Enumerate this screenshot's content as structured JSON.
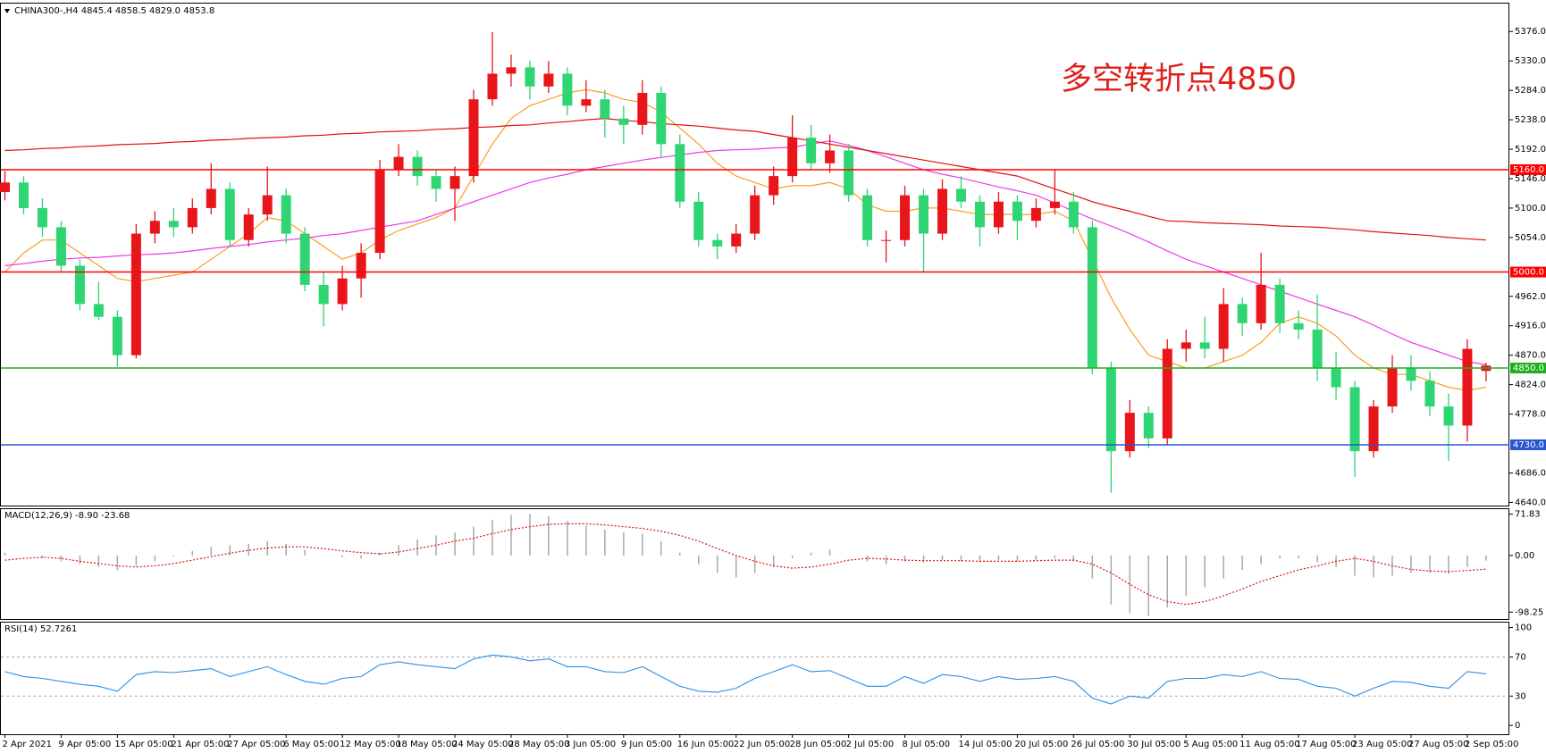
{
  "chart_data": [
    {
      "type": "candlestick",
      "title": "CHINA300-,H4  4845.4 4858.5 4829.0 4853.8",
      "annotation": "多空转折点4850",
      "up_color": "#e8151b",
      "down_color": "#2fd573",
      "categories": [
        "2 Apr 2021",
        null,
        null,
        "9 Apr 05:00",
        null,
        null,
        "15 Apr 05:00",
        null,
        null,
        "21 Apr 05:00",
        null,
        null,
        "27 Apr 05:00",
        null,
        null,
        "6 May 05:00",
        null,
        null,
        "12 May 05:00",
        null,
        null,
        "18 May 05:00",
        null,
        null,
        "24 May 05:00",
        null,
        null,
        "28 May 05:00",
        null,
        null,
        "3 Jun 05:00",
        null,
        null,
        "9 Jun 05:00",
        null,
        null,
        "16 Jun 05:00",
        null,
        null,
        "22 Jun 05:00",
        null,
        null,
        "28 Jun 05:00",
        null,
        null,
        "2 Jul 05:00",
        null,
        null,
        "8 Jul 05:00",
        null,
        null,
        "14 Jul 05:00",
        null,
        null,
        "20 Jul 05:00",
        null,
        null,
        "26 Jul 05:00",
        null,
        null,
        "30 Jul 05:00",
        null,
        null,
        "5 Aug 05:00",
        null,
        null,
        "11 Aug 05:00",
        null,
        null,
        "17 Aug 05:00",
        null,
        null,
        "23 Aug 05:00",
        null,
        null,
        "27 Aug 05:00",
        null,
        null,
        "2 Sep 05:00",
        null
      ],
      "ohlc": [
        [
          5125,
          5158,
          5112,
          5140
        ],
        [
          5140,
          5150,
          5090,
          5100
        ],
        [
          5100,
          5115,
          5055,
          5070
        ],
        [
          5070,
          5080,
          5000,
          5010
        ],
        [
          5010,
          5020,
          4940,
          4950
        ],
        [
          4950,
          4985,
          4925,
          4930
        ],
        [
          4930,
          4940,
          4852,
          4870
        ],
        [
          4870,
          5075,
          4865,
          5060
        ],
        [
          5060,
          5095,
          5045,
          5080
        ],
        [
          5080,
          5100,
          5055,
          5070
        ],
        [
          5070,
          5115,
          5060,
          5100
        ],
        [
          5100,
          5170,
          5090,
          5130
        ],
        [
          5130,
          5140,
          5040,
          5050
        ],
        [
          5050,
          5100,
          5040,
          5090
        ],
        [
          5090,
          5165,
          5080,
          5120
        ],
        [
          5120,
          5130,
          5045,
          5060
        ],
        [
          5060,
          5070,
          4970,
          4980
        ],
        [
          4980,
          5000,
          4915,
          4950
        ],
        [
          4950,
          5010,
          4940,
          4990
        ],
        [
          4990,
          5045,
          4960,
          5030
        ],
        [
          5030,
          5175,
          5020,
          5160
        ],
        [
          5160,
          5200,
          5150,
          5180
        ],
        [
          5180,
          5190,
          5135,
          5150
        ],
        [
          5150,
          5160,
          5110,
          5130
        ],
        [
          5130,
          5165,
          5080,
          5150
        ],
        [
          5150,
          5285,
          5140,
          5270
        ],
        [
          5270,
          5375,
          5260,
          5310
        ],
        [
          5310,
          5340,
          5290,
          5320
        ],
        [
          5320,
          5330,
          5270,
          5290
        ],
        [
          5290,
          5330,
          5280,
          5310
        ],
        [
          5310,
          5320,
          5245,
          5260
        ],
        [
          5260,
          5300,
          5250,
          5270
        ],
        [
          5270,
          5285,
          5210,
          5240
        ],
        [
          5240,
          5260,
          5200,
          5230
        ],
        [
          5230,
          5300,
          5215,
          5280
        ],
        [
          5280,
          5290,
          5180,
          5200
        ],
        [
          5200,
          5215,
          5100,
          5110
        ],
        [
          5110,
          5125,
          5040,
          5050
        ],
        [
          5050,
          5060,
          5020,
          5040
        ],
        [
          5040,
          5075,
          5030,
          5060
        ],
        [
          5060,
          5135,
          5050,
          5120
        ],
        [
          5120,
          5165,
          5105,
          5150
        ],
        [
          5150,
          5245,
          5140,
          5210
        ],
        [
          5210,
          5230,
          5160,
          5170
        ],
        [
          5170,
          5215,
          5155,
          5190
        ],
        [
          5190,
          5200,
          5110,
          5120
        ],
        [
          5120,
          5130,
          5040,
          5050
        ],
        [
          5050,
          5065,
          5015,
          5050
        ],
        [
          5050,
          5135,
          5040,
          5120
        ],
        [
          5120,
          5130,
          5000,
          5060
        ],
        [
          5060,
          5145,
          5050,
          5130
        ],
        [
          5130,
          5150,
          5100,
          5110
        ],
        [
          5110,
          5120,
          5040,
          5070
        ],
        [
          5070,
          5125,
          5060,
          5110
        ],
        [
          5110,
          5120,
          5050,
          5080
        ],
        [
          5080,
          5115,
          5070,
          5100
        ],
        [
          5100,
          5160,
          5090,
          5110
        ],
        [
          5110,
          5125,
          5060,
          5070
        ],
        [
          5070,
          5080,
          4840,
          4850
        ],
        [
          4850,
          4860,
          4655,
          4720
        ],
        [
          4720,
          4800,
          4710,
          4780
        ],
        [
          4780,
          4790,
          4725,
          4740
        ],
        [
          4740,
          4895,
          4730,
          4880
        ],
        [
          4880,
          4910,
          4860,
          4890
        ],
        [
          4890,
          4930,
          4865,
          4880
        ],
        [
          4880,
          4975,
          4860,
          4950
        ],
        [
          4950,
          4960,
          4900,
          4920
        ],
        [
          4920,
          5030,
          4910,
          4980
        ],
        [
          4980,
          4990,
          4905,
          4920
        ],
        [
          4920,
          4940,
          4895,
          4910
        ],
        [
          4910,
          4965,
          4830,
          4850
        ],
        [
          4850,
          4875,
          4800,
          4820
        ],
        [
          4820,
          4830,
          4680,
          4720
        ],
        [
          4720,
          4800,
          4710,
          4790
        ],
        [
          4790,
          4870,
          4780,
          4850
        ],
        [
          4850,
          4870,
          4815,
          4830
        ],
        [
          4830,
          4845,
          4775,
          4790
        ],
        [
          4790,
          4810,
          4705,
          4760
        ],
        [
          4760,
          4895,
          4735,
          4880
        ],
        [
          4845.4,
          4858.5,
          4829.0,
          4853.8
        ]
      ],
      "overlays": [
        {
          "color": "#f7a021",
          "values": [
            5000,
            5030,
            5050,
            5050,
            5030,
            5010,
            4990,
            4985,
            4990,
            4995,
            5000,
            5020,
            5040,
            5060,
            5085,
            5080,
            5060,
            5040,
            5020,
            5030,
            5050,
            5065,
            5075,
            5085,
            5100,
            5150,
            5200,
            5240,
            5260,
            5270,
            5280,
            5285,
            5280,
            5270,
            5265,
            5250,
            5225,
            5200,
            5170,
            5150,
            5140,
            5130,
            5135,
            5135,
            5140,
            5130,
            5105,
            5095,
            5095,
            5100,
            5100,
            5095,
            5090,
            5090,
            5090,
            5090,
            5095,
            5080,
            5020,
            4960,
            4910,
            4870,
            4860,
            4850,
            4850,
            4860,
            4870,
            4890,
            4920,
            4930,
            4920,
            4900,
            4870,
            4850,
            4840,
            4840,
            4830,
            4820,
            4815,
            4820
          ]
        },
        {
          "color": "#e83be8",
          "values": [
            5010,
            5013,
            5017,
            5020,
            5022,
            5023,
            5025,
            5027,
            5028,
            5030,
            5033,
            5037,
            5040,
            5043,
            5047,
            5050,
            5053,
            5057,
            5060,
            5065,
            5070,
            5075,
            5080,
            5090,
            5100,
            5110,
            5120,
            5130,
            5140,
            5147,
            5153,
            5160,
            5165,
            5170,
            5175,
            5179,
            5183,
            5187,
            5190,
            5191,
            5192,
            5194,
            5195,
            5200,
            5205,
            5198,
            5190,
            5180,
            5170,
            5160,
            5153,
            5147,
            5140,
            5133,
            5127,
            5120,
            5108,
            5095,
            5083,
            5072,
            5060,
            5047,
            5033,
            5020,
            5010,
            5000,
            4990,
            4980,
            4970,
            4960,
            4950,
            4940,
            4930,
            4917,
            4903,
            4890,
            4880,
            4870,
            4860,
            4855
          ]
        },
        {
          "color": "#e01010",
          "values": [
            5190,
            5191,
            5193,
            5194,
            5196,
            5197,
            5199,
            5200,
            5201,
            5203,
            5204,
            5206,
            5207,
            5209,
            5210,
            5211,
            5213,
            5214,
            5216,
            5217,
            5219,
            5220,
            5221,
            5223,
            5224,
            5226,
            5227,
            5229,
            5230,
            5233,
            5235,
            5238,
            5240,
            5237,
            5235,
            5232,
            5230,
            5228,
            5225,
            5222,
            5220,
            5215,
            5210,
            5205,
            5200,
            5195,
            5190,
            5185,
            5180,
            5175,
            5170,
            5165,
            5160,
            5155,
            5150,
            5140,
            5130,
            5120,
            5110,
            5102,
            5095,
            5087,
            5080,
            5079,
            5077,
            5076,
            5075,
            5074,
            5072,
            5071,
            5070,
            5068,
            5066,
            5063,
            5061,
            5059,
            5057,
            5054,
            5052,
            5050
          ]
        }
      ],
      "levels": [
        {
          "value": 5160,
          "label": "5160.0",
          "color": "#ff0000"
        },
        {
          "value": 5000,
          "label": "5000.0",
          "color": "#ff0000"
        },
        {
          "value": 4850,
          "label": "4850.0",
          "color": "#1fb01f"
        },
        {
          "value": 4730,
          "label": "4730.0",
          "color": "#2a55d0"
        }
      ],
      "ylim": [
        4635,
        5421
      ],
      "yticks": [
        {
          "value": 5376,
          "label": "5376.0"
        },
        {
          "value": 5330,
          "label": "5330.0"
        },
        {
          "value": 5284,
          "label": "5284.0"
        },
        {
          "value": 5238,
          "label": "5238.0"
        },
        {
          "value": 5192,
          "label": "5192.0"
        },
        {
          "value": 5146,
          "label": "5146.0"
        },
        {
          "value": 5100,
          "label": "5100.0"
        },
        {
          "value": 5054,
          "label": "5054.0"
        },
        {
          "value": 4962,
          "label": "4962.0"
        },
        {
          "value": 4916,
          "label": "4916.0"
        },
        {
          "value": 4870,
          "label": "4870.0"
        },
        {
          "value": 4824,
          "label": "4824.0"
        },
        {
          "value": 4778,
          "label": "4778.0"
        },
        {
          "value": 4686,
          "label": "4686.0"
        },
        {
          "value": 4640,
          "label": "4640.0"
        }
      ]
    },
    {
      "type": "macd",
      "title": "MACD(12,26,9) -8.90 -23.68",
      "hist_color": "#a8a8a8",
      "signal_color": "#e01010",
      "histogram": [
        5,
        0,
        -5,
        -10,
        -15,
        -20,
        -25,
        -18,
        -10,
        -2,
        8,
        15,
        18,
        20,
        25,
        20,
        10,
        0,
        -3,
        -5,
        5,
        18,
        28,
        35,
        40,
        50,
        62,
        70,
        72,
        68,
        60,
        52,
        45,
        40,
        38,
        25,
        5,
        -15,
        -30,
        -38,
        -30,
        -20,
        -5,
        5,
        10,
        0,
        -10,
        -15,
        -10,
        -12,
        -8,
        -10,
        -12,
        -8,
        -10,
        -8,
        -5,
        -10,
        -40,
        -85,
        -100,
        -105,
        -90,
        -70,
        -55,
        -40,
        -25,
        -15,
        -5,
        -5,
        -12,
        -20,
        -35,
        -38,
        -35,
        -30,
        -30,
        -32,
        -20,
        -8.9
      ],
      "signal": [
        -8,
        -5,
        -3,
        -5,
        -10,
        -14,
        -18,
        -20,
        -18,
        -14,
        -8,
        -2,
        4,
        9,
        13,
        15,
        15,
        12,
        8,
        5,
        3,
        6,
        12,
        18,
        25,
        30,
        38,
        45,
        50,
        54,
        55,
        55,
        53,
        50,
        47,
        42,
        35,
        25,
        12,
        0,
        -10,
        -18,
        -22,
        -20,
        -15,
        -8,
        -5,
        -6,
        -8,
        -9,
        -9,
        -9,
        -10,
        -10,
        -10,
        -9,
        -8,
        -8,
        -15,
        -30,
        -50,
        -68,
        -80,
        -85,
        -80,
        -70,
        -58,
        -45,
        -35,
        -25,
        -18,
        -10,
        -5,
        -10,
        -18,
        -24,
        -27,
        -28,
        -26,
        -23.68
      ],
      "ylim": [
        -110.2,
        82
      ],
      "yticks": [
        71.83,
        {
          "value": 0,
          "label": "0.00"
        },
        -98.25
      ]
    },
    {
      "type": "line",
      "title": "RSI(14) 52.7261",
      "color": "#2a8fe8",
      "values": [
        55,
        50,
        48,
        45,
        42,
        40,
        35,
        52,
        55,
        54,
        56,
        58,
        50,
        55,
        60,
        52,
        45,
        42,
        48,
        50,
        62,
        65,
        62,
        60,
        58,
        68,
        72,
        70,
        66,
        68,
        60,
        60,
        55,
        54,
        60,
        50,
        40,
        35,
        34,
        38,
        48,
        55,
        62,
        55,
        56,
        48,
        40,
        40,
        50,
        43,
        52,
        50,
        45,
        50,
        47,
        48,
        50,
        45,
        28,
        22,
        30,
        28,
        45,
        48,
        48,
        52,
        50,
        55,
        48,
        47,
        40,
        38,
        30,
        38,
        45,
        44,
        40,
        38,
        55,
        52.7261
      ],
      "levels": [
        70,
        30
      ],
      "ylim": [
        -9,
        106
      ],
      "yticks": [
        100,
        70,
        30,
        0
      ]
    }
  ]
}
